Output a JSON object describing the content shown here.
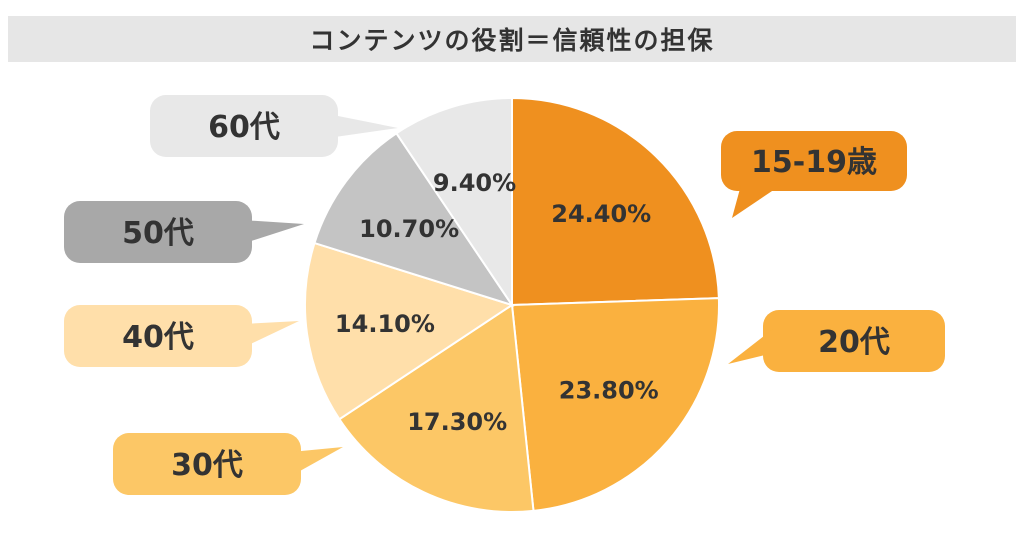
{
  "title": "コンテンツの役割＝信頼性の担保",
  "chart_data": {
    "type": "pie",
    "title": "コンテンツの役割＝信頼性の担保",
    "start_angle_deg": 0,
    "direction": "clockwise",
    "slices": [
      {
        "category": "15-19歳",
        "value": 24.4,
        "value_label": "24.40%",
        "color": "#ef901f",
        "callout_color": "#ef901f",
        "callout_text_color": "#333333"
      },
      {
        "category": "20代",
        "value": 23.8,
        "value_label": "23.80%",
        "color": "#fab13f",
        "callout_color": "#fab13f",
        "callout_text_color": "#333333"
      },
      {
        "category": "30代",
        "value": 17.3,
        "value_label": "17.30%",
        "color": "#fcc766",
        "callout_color": "#fcc766",
        "callout_text_color": "#333333"
      },
      {
        "category": "40代",
        "value": 14.1,
        "value_label": "14.10%",
        "color": "#ffdfaa",
        "callout_color": "#ffdfaa",
        "callout_text_color": "#333333"
      },
      {
        "category": "50代",
        "value": 10.7,
        "value_label": "10.70%",
        "color": "#c4c4c4",
        "callout_color": "#a8a8a8",
        "callout_text_color": "#333333"
      },
      {
        "category": "60代",
        "value": 9.4,
        "value_label": "9.40%",
        "color": "#e8e8e8",
        "callout_color": "#e8e8e8",
        "callout_text_color": "#333333"
      }
    ]
  }
}
